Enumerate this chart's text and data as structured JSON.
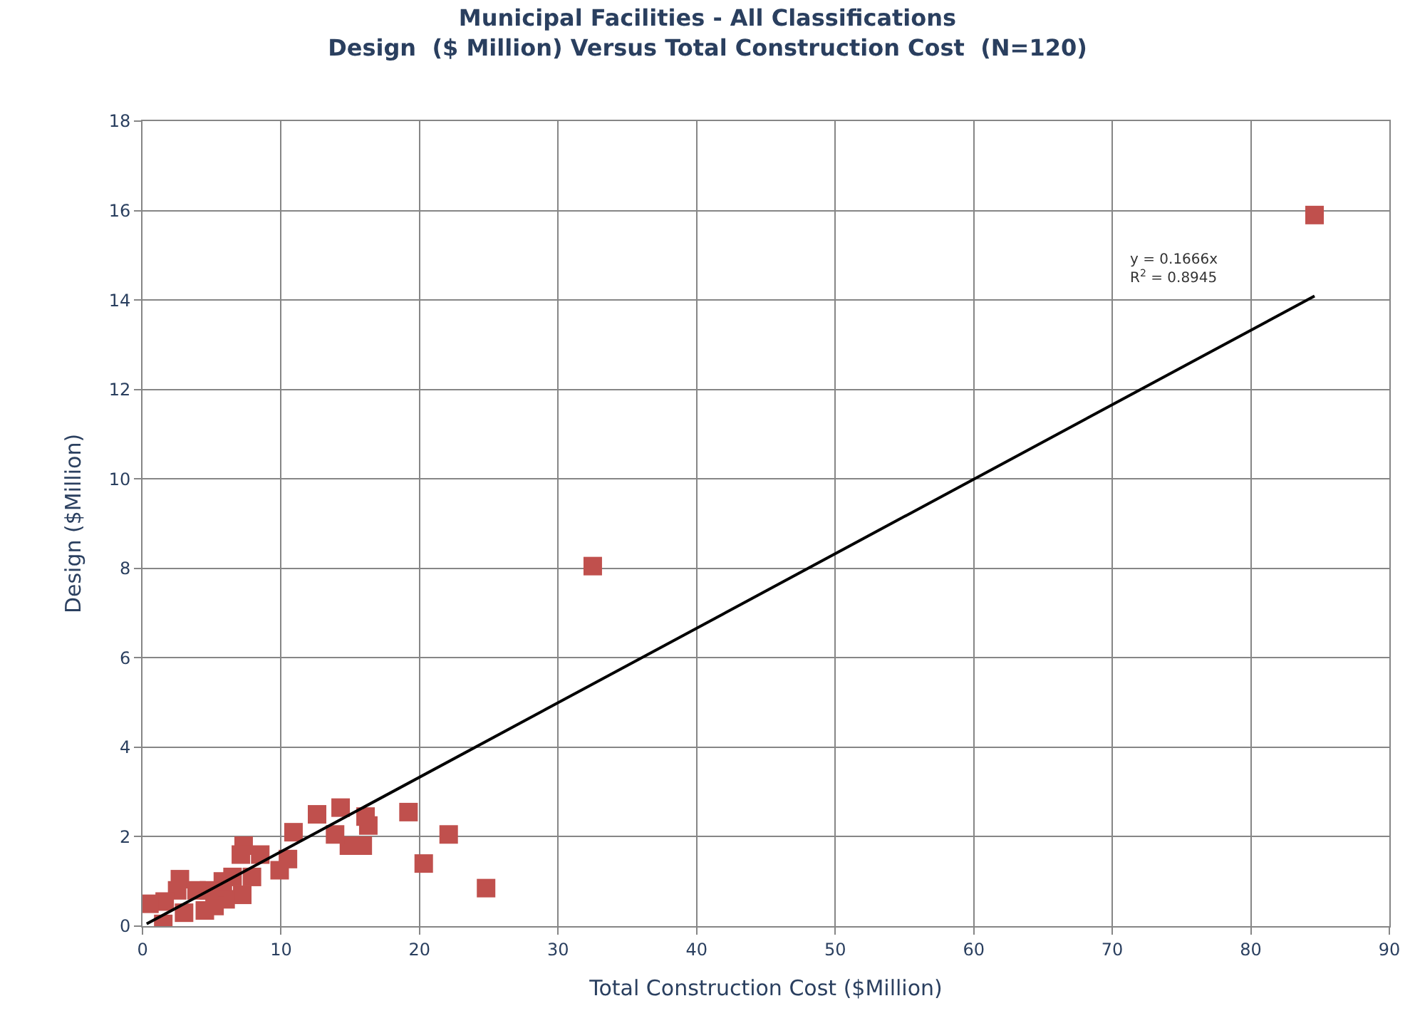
{
  "chart_data": {
    "type": "scatter",
    "title": "Municipal Facilities - All Classifications\nDesign  ($ Million) Versus Total Construction Cost  (N=120)",
    "xlabel": "Total Construction Cost ($Million)",
    "ylabel": "Design ($Million)",
    "xlim": [
      0,
      90
    ],
    "ylim": [
      0,
      18
    ],
    "xticks": [
      0,
      10,
      20,
      30,
      40,
      50,
      60,
      70,
      80,
      90
    ],
    "yticks": [
      0,
      2,
      4,
      6,
      8,
      10,
      12,
      14,
      16,
      18
    ],
    "grid": true,
    "marker": "square",
    "series": [
      {
        "color": "#c0504d",
        "x": [
          84.6,
          32.5,
          24.8,
          22.1,
          20.3,
          19.2,
          16.3,
          16.1,
          15.9,
          14.9,
          14.3,
          13.9,
          12.6,
          10.9,
          10.5,
          9.9,
          8.5,
          7.9,
          7.3,
          7.1,
          7.2,
          6.5,
          6.0,
          5.8,
          5.2,
          4.8,
          4.5,
          3.9,
          3.0,
          2.7,
          2.5,
          1.6,
          1.5,
          0.5
        ],
        "values": [
          15.9,
          8.05,
          0.85,
          2.05,
          1.4,
          2.55,
          2.25,
          2.45,
          1.8,
          1.8,
          2.65,
          2.05,
          2.5,
          2.1,
          1.5,
          1.25,
          1.6,
          1.1,
          1.8,
          1.6,
          0.7,
          1.1,
          0.6,
          1.0,
          0.45,
          0.8,
          0.35,
          0.8,
          0.3,
          1.05,
          0.8,
          0.55,
          0.05,
          0.5
        ]
      },
      {
        "type": "line",
        "color": "#000000",
        "marker": "none",
        "x": [
          0.3,
          84.6
        ],
        "values": [
          0.05,
          14.09
        ]
      }
    ],
    "annotations": [
      "y = 0.1666x\nR$^{2}$ = 0.8945"
    ]
  }
}
